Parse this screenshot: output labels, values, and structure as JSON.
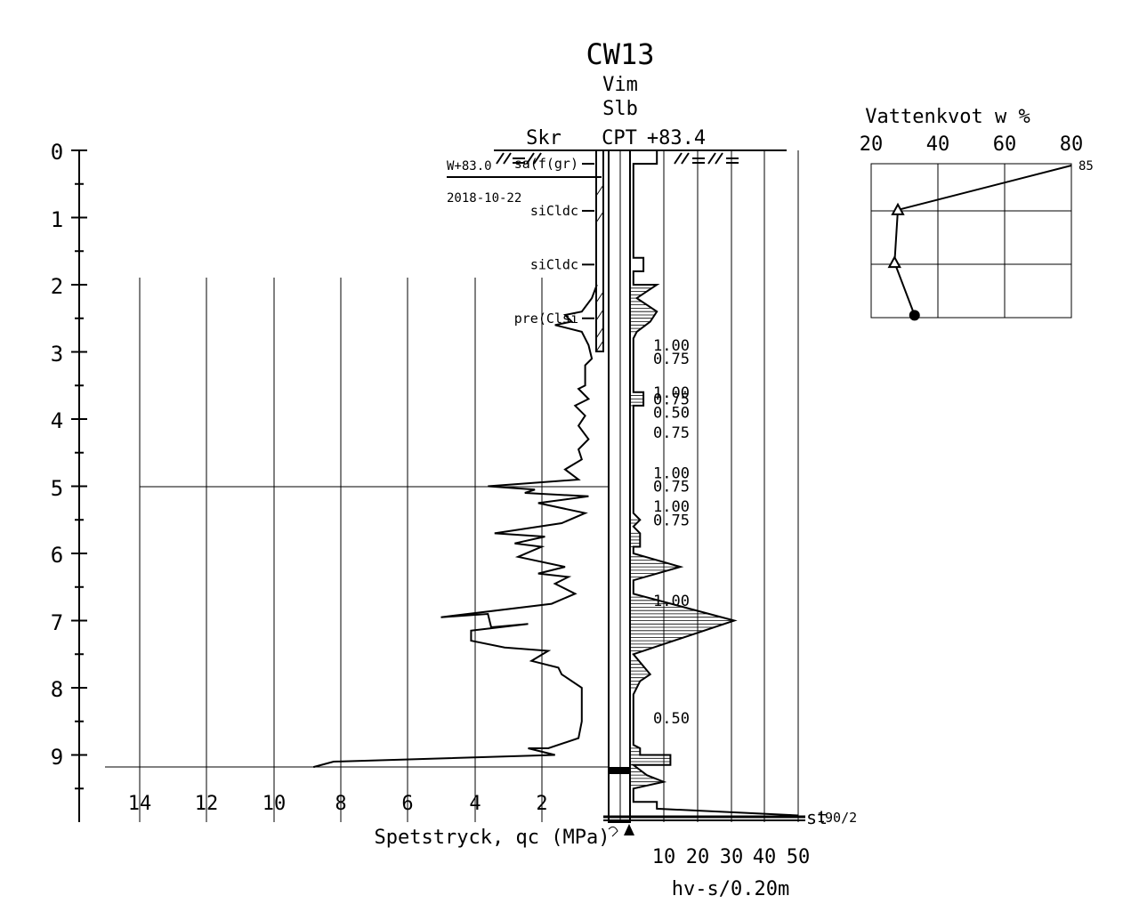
{
  "header": {
    "borehole_id": "CW13",
    "method_line1": "Vim",
    "method_line2": "Slb",
    "col_skr": "Skr",
    "col_cpt": "CPT",
    "elevation": "+83.4"
  },
  "groundwater": {
    "label": "W+83.0",
    "date": "2018-10-22"
  },
  "soil_labels": [
    {
      "text": "sa(f(gr)",
      "depth_m": 0.2
    },
    {
      "text": "siCldc",
      "depth_m": 0.9
    },
    {
      "text": "siCldc",
      "depth_m": 1.7
    },
    {
      "text": "pre(Clsi",
      "depth_m": 2.5
    }
  ],
  "sensitivity_labels": [
    {
      "text": "1.00",
      "depth_m": 2.9
    },
    {
      "text": "0.75",
      "depth_m": 3.1
    },
    {
      "text": "1.00",
      "depth_m": 3.6
    },
    {
      "text": "0.75",
      "depth_m": 3.7
    },
    {
      "text": "0.50",
      "depth_m": 3.9
    },
    {
      "text": "0.75",
      "depth_m": 4.2
    },
    {
      "text": "1.00",
      "depth_m": 4.8
    },
    {
      "text": "0.75",
      "depth_m": 5.0
    },
    {
      "text": "1.00",
      "depth_m": 5.3
    },
    {
      "text": "0.75",
      "depth_m": 5.5
    },
    {
      "text": "1.00",
      "depth_m": 6.7
    },
    {
      "text": "0.50",
      "depth_m": 8.45
    }
  ],
  "depth_axis": {
    "ticks": [
      "0",
      "1",
      "2",
      "3",
      "4",
      "5",
      "6",
      "7",
      "8",
      "9"
    ]
  },
  "qc_axis": {
    "label": "Spetstryck, qc (MPa)",
    "ticks": [
      "14",
      "12",
      "10",
      "8",
      "6",
      "4",
      "2"
    ]
  },
  "hv_axis": {
    "label": "hv-s/0.20m",
    "ticks": [
      "10",
      "20",
      "30",
      "40",
      "50"
    ]
  },
  "stop": {
    "code": "st",
    "value": "190/2"
  },
  "water_content": {
    "title": "Vattenkvot  w  %",
    "ticks": [
      "20",
      "40",
      "60",
      "80"
    ],
    "over_range_label": "85"
  },
  "chart_data": [
    {
      "type": "line",
      "name": "qc",
      "x_unit": "MPa",
      "y_unit": "m",
      "ylim": [
        0,
        9.8
      ],
      "points": [
        [
          0.35,
          2.0
        ],
        [
          0.5,
          2.2
        ],
        [
          0.8,
          2.4
        ],
        [
          1.3,
          2.45
        ],
        [
          1.1,
          2.55
        ],
        [
          1.6,
          2.6
        ],
        [
          0.8,
          2.7
        ],
        [
          0.6,
          2.9
        ],
        [
          0.5,
          3.1
        ],
        [
          0.7,
          3.2
        ],
        [
          0.7,
          3.5
        ],
        [
          0.9,
          3.55
        ],
        [
          0.6,
          3.7
        ],
        [
          1.0,
          3.8
        ],
        [
          0.7,
          3.95
        ],
        [
          0.9,
          4.1
        ],
        [
          0.6,
          4.3
        ],
        [
          0.9,
          4.45
        ],
        [
          0.8,
          4.6
        ],
        [
          1.3,
          4.75
        ],
        [
          0.9,
          4.9
        ],
        [
          3.6,
          5.0
        ],
        [
          2.2,
          5.05
        ],
        [
          2.5,
          5.1
        ],
        [
          0.6,
          5.15
        ],
        [
          2.1,
          5.25
        ],
        [
          0.7,
          5.4
        ],
        [
          1.4,
          5.55
        ],
        [
          3.4,
          5.7
        ],
        [
          1.9,
          5.75
        ],
        [
          2.8,
          5.85
        ],
        [
          2.0,
          5.9
        ],
        [
          2.7,
          6.05
        ],
        [
          1.3,
          6.2
        ],
        [
          2.1,
          6.3
        ],
        [
          1.2,
          6.35
        ],
        [
          1.6,
          6.45
        ],
        [
          1.0,
          6.6
        ],
        [
          1.7,
          6.75
        ],
        [
          5.0,
          6.95
        ],
        [
          3.6,
          6.9
        ],
        [
          3.5,
          7.1
        ],
        [
          2.4,
          7.05
        ],
        [
          4.1,
          7.15
        ],
        [
          4.1,
          7.3
        ],
        [
          3.1,
          7.4
        ],
        [
          1.8,
          7.45
        ],
        [
          2.3,
          7.6
        ],
        [
          1.5,
          7.7
        ],
        [
          1.4,
          7.8
        ],
        [
          0.8,
          8.0
        ],
        [
          0.8,
          8.5
        ],
        [
          0.9,
          8.75
        ],
        [
          1.8,
          8.9
        ],
        [
          2.4,
          8.9
        ],
        [
          1.6,
          9.0
        ],
        [
          8.2,
          9.1
        ],
        [
          8.8,
          9.18
        ]
      ]
    },
    {
      "type": "line",
      "name": "hv",
      "x_unit": "hv-s/0.20m",
      "y_unit": "m",
      "ylim": [
        0,
        9.8
      ],
      "points": [
        [
          8,
          0.0
        ],
        [
          8,
          0.2
        ],
        [
          1,
          0.2
        ],
        [
          1,
          1.6
        ],
        [
          4,
          1.6
        ],
        [
          4,
          1.8
        ],
        [
          1,
          1.8
        ],
        [
          1,
          2.0
        ],
        [
          8,
          2.0
        ],
        [
          2,
          2.2
        ],
        [
          8,
          2.4
        ],
        [
          6,
          2.55
        ],
        [
          2,
          2.7
        ],
        [
          1,
          2.8
        ],
        [
          1,
          3.6
        ],
        [
          4,
          3.6
        ],
        [
          4,
          3.8
        ],
        [
          1,
          3.8
        ],
        [
          1,
          5.4
        ],
        [
          3,
          5.5
        ],
        [
          1,
          5.6
        ],
        [
          3,
          5.7
        ],
        [
          3,
          5.9
        ],
        [
          1,
          5.9
        ],
        [
          1,
          6.0
        ],
        [
          15,
          6.2
        ],
        [
          1,
          6.4
        ],
        [
          1,
          6.6
        ],
        [
          31,
          7.0
        ],
        [
          1,
          7.5
        ],
        [
          6,
          7.8
        ],
        [
          3,
          7.9
        ],
        [
          1,
          8.1
        ],
        [
          1,
          8.85
        ],
        [
          3,
          8.9
        ],
        [
          3,
          9.0
        ],
        [
          12,
          9.0
        ],
        [
          12,
          9.15
        ],
        [
          1,
          9.15
        ],
        [
          5,
          9.3
        ],
        [
          10,
          9.4
        ],
        [
          1,
          9.5
        ],
        [
          1,
          9.7
        ],
        [
          8,
          9.7
        ],
        [
          8,
          9.8
        ],
        [
          50,
          9.9
        ]
      ]
    },
    {
      "type": "line",
      "name": "Vattenkvot w %",
      "xlim": [
        20,
        80
      ],
      "points": [
        [
          28,
          0.9
        ],
        [
          27,
          1.7
        ],
        [
          33,
          2.5
        ]
      ],
      "off_scale": [
        [
          85,
          0.2
        ]
      ]
    }
  ]
}
